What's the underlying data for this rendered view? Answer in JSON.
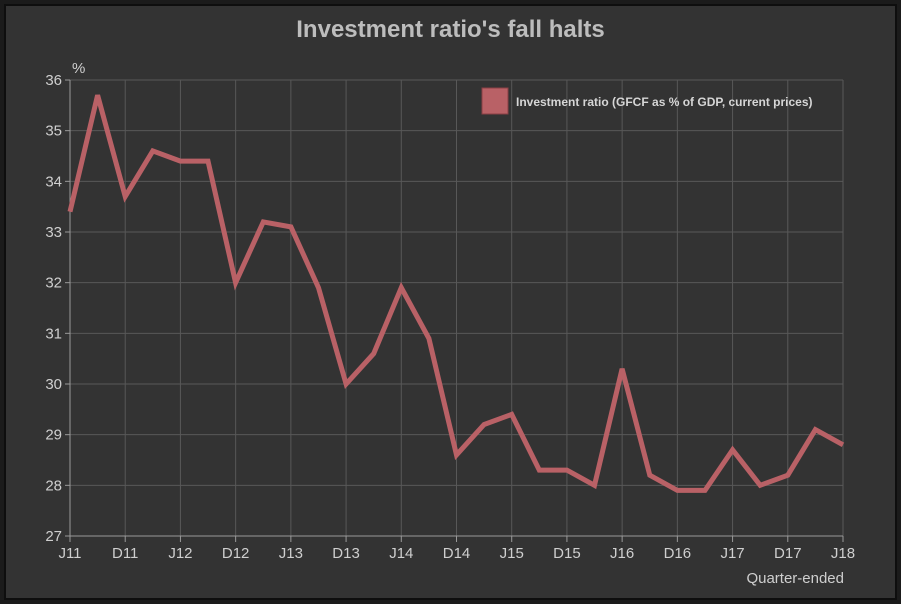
{
  "chart_data": {
    "type": "line",
    "title": "Investment ratio's fall halts",
    "ylabel": "%",
    "xlabel": "Quarter-ended",
    "ylim": [
      27,
      36
    ],
    "yticks": [
      27,
      28,
      29,
      30,
      31,
      32,
      33,
      34,
      35,
      36
    ],
    "xtick_labels": [
      "J11",
      "D11",
      "J12",
      "D12",
      "J13",
      "D13",
      "J14",
      "D14",
      "J15",
      "D15",
      "J16",
      "D16",
      "J17",
      "D17",
      "J18"
    ],
    "grid": true,
    "legend_position": "top-right",
    "series": [
      {
        "name": "Investment ratio (GFCF as % of GDP, current prices)",
        "color": "#b96166",
        "values": [
          33.4,
          35.7,
          33.7,
          34.6,
          34.4,
          34.4,
          32.0,
          33.2,
          33.1,
          31.9,
          30.0,
          30.6,
          31.9,
          30.9,
          28.6,
          29.2,
          29.4,
          28.3,
          28.3,
          28.0,
          30.3,
          28.2,
          27.9,
          27.9,
          28.7,
          28.0,
          28.2,
          29.1,
          28.8
        ]
      }
    ]
  }
}
